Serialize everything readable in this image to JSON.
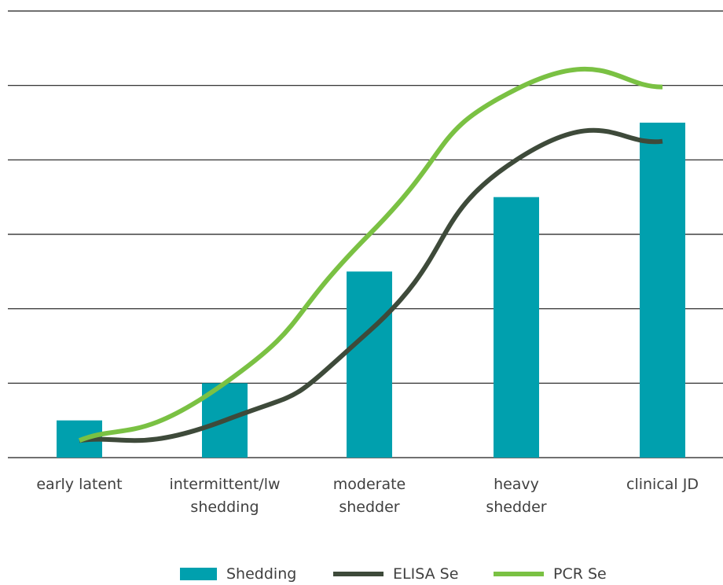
{
  "chart_data": {
    "type": "bar",
    "categories": [
      [
        "early latent"
      ],
      [
        "intermittent/lw",
        "shedding"
      ],
      [
        "moderate",
        "shedder"
      ],
      [
        "heavy",
        "shedder"
      ],
      [
        "clinical JD"
      ]
    ],
    "ylim": [
      0,
      6
    ],
    "grid": true,
    "legend_position": "bottom",
    "series": [
      {
        "name": "Shedding",
        "kind": "bar",
        "color": "#00a0ae",
        "values": [
          0.5,
          1.0,
          2.5,
          3.5,
          4.5
        ]
      },
      {
        "name": "ELISA Se",
        "kind": "line",
        "color": "#3e4a3a",
        "values": [
          0.23,
          0.5,
          1.7,
          4.0,
          4.25
        ]
      },
      {
        "name": "PCR Se",
        "kind": "line",
        "color": "#7ac143",
        "values": [
          0.23,
          1.0,
          3.0,
          4.95,
          4.98
        ]
      }
    ],
    "colors": {
      "gridline": "#1a1a1a",
      "text": "#404040"
    }
  }
}
